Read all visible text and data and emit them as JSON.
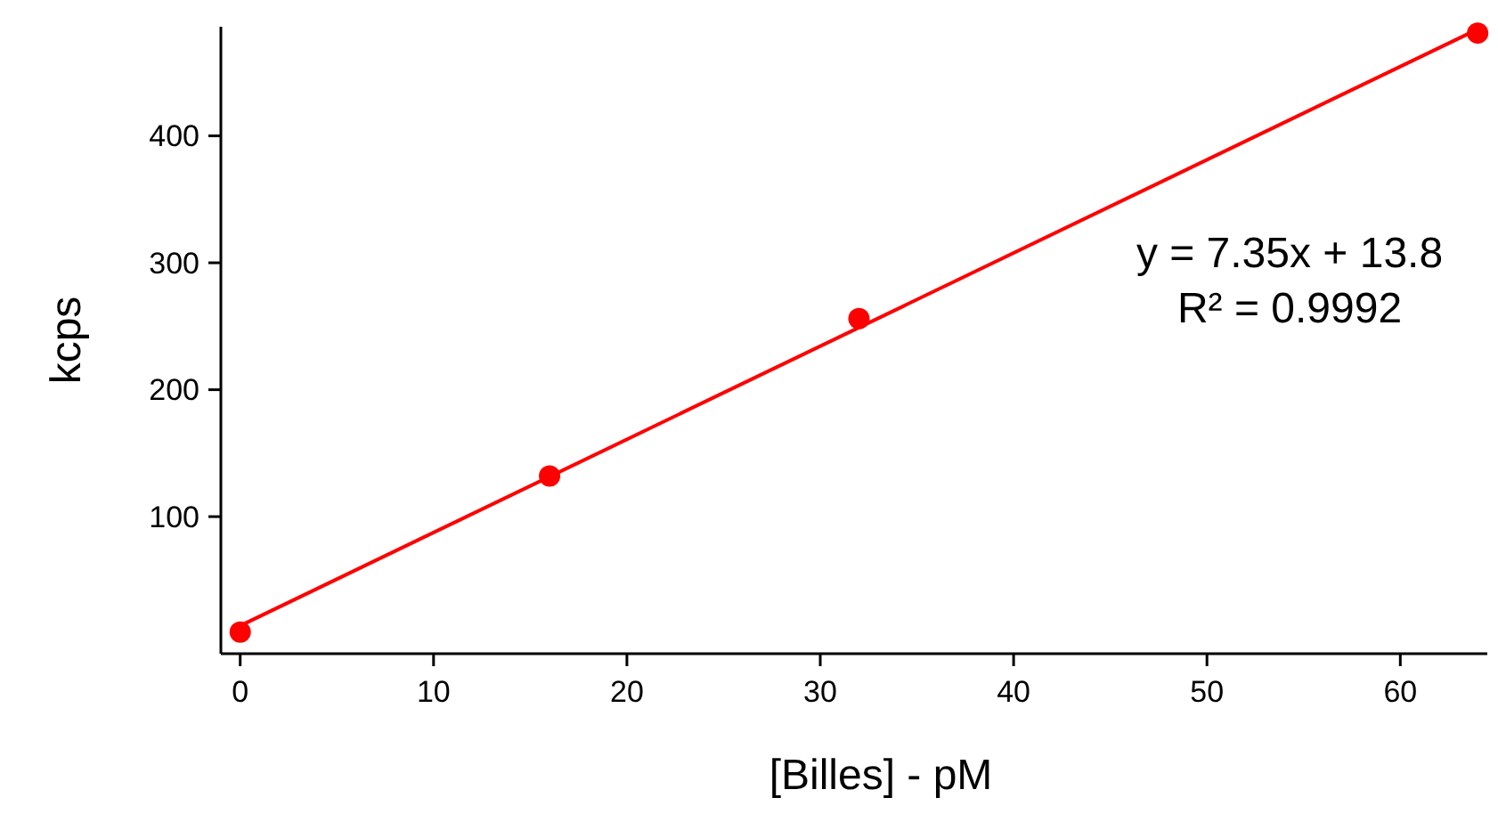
{
  "chart_data": {
    "type": "scatter",
    "xlabel": "[Billes] - pM",
    "ylabel": "kcps",
    "xlim": [
      -1,
      64.5
    ],
    "ylim": [
      -8,
      486
    ],
    "xticks": [
      0,
      10,
      20,
      30,
      40,
      50,
      60
    ],
    "yticks": [
      100,
      200,
      300,
      400
    ],
    "series": [
      {
        "type": "scatter",
        "color": "#ff0000",
        "x": [
          0,
          16,
          32,
          64
        ],
        "values": [
          9,
          132,
          256,
          481
        ],
        "marker": "circle"
      },
      {
        "type": "line",
        "color": "#ff0000",
        "x": [
          0,
          64
        ],
        "values": [
          14,
          484
        ],
        "marker": "none"
      }
    ],
    "annotations": [
      "y = 7.35x + 13.8",
      "R² = 0.9992"
    ],
    "grid": false
  }
}
